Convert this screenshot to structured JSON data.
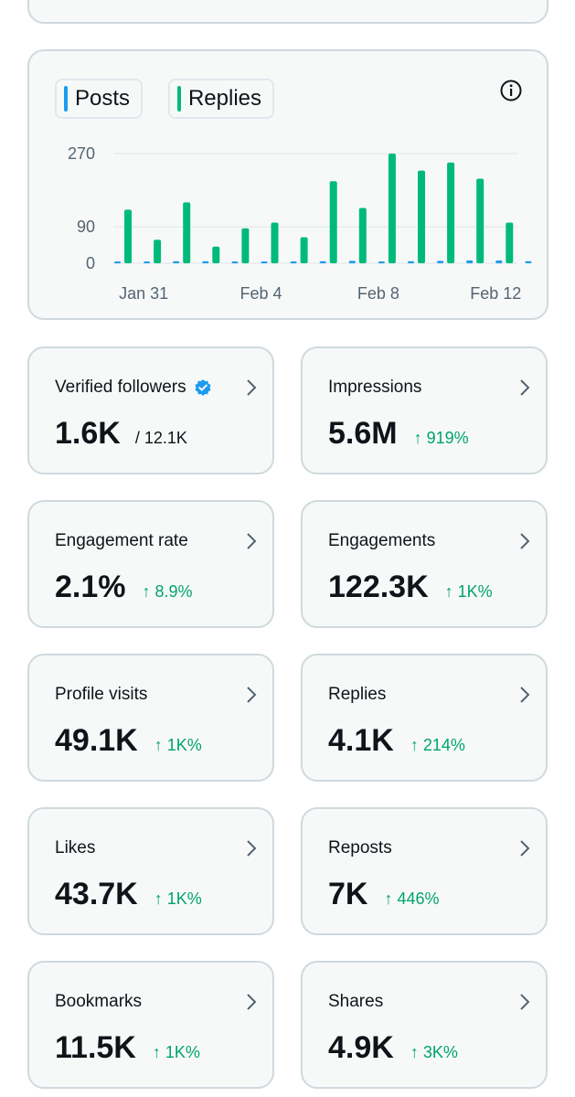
{
  "colors": {
    "posts": "#1d9bf0",
    "replies": "#00ba7c",
    "up": "#00a36c",
    "grid": "#e7ecf0"
  },
  "legend": {
    "posts_label": "Posts",
    "replies_label": "Replies"
  },
  "chart_data": {
    "type": "bar",
    "title": "",
    "xlabel": "",
    "ylabel": "",
    "ylim": [
      0,
      270
    ],
    "yticks": [
      "270",
      "90",
      "0"
    ],
    "ytick_values": [
      270,
      90,
      0
    ],
    "xticks": [
      "Jan 31",
      "Feb 4",
      "Feb 8",
      "Feb 12"
    ],
    "categories": [
      "Jan 30",
      "Jan 31",
      "Feb 1",
      "Feb 2",
      "Feb 3",
      "Feb 4",
      "Feb 5",
      "Feb 6",
      "Feb 7",
      "Feb 8",
      "Feb 9",
      "Feb 10",
      "Feb 11",
      "Feb 12",
      "Feb 13"
    ],
    "series": [
      {
        "name": "Posts",
        "values": [
          4,
          4,
          5,
          5,
          4,
          4,
          4,
          5,
          6,
          4,
          5,
          6,
          7,
          7,
          5
        ]
      },
      {
        "name": "Replies",
        "values": [
          132,
          58,
          150,
          41,
          86,
          100,
          64,
          202,
          136,
          270,
          228,
          248,
          208,
          100,
          0
        ]
      }
    ],
    "grid": true,
    "legend": "top-left"
  },
  "stats": [
    {
      "label": "Verified followers",
      "value": "1.6K",
      "sub": "/ 12.1K",
      "change": ""
    },
    {
      "label": "Impressions",
      "value": "5.6M",
      "sub": "",
      "change": "↑ 919%"
    },
    {
      "label": "Engagement rate",
      "value": "2.1%",
      "sub": "",
      "change": "↑ 8.9%"
    },
    {
      "label": "Engagements",
      "value": "122.3K",
      "sub": "",
      "change": "↑ 1K%"
    },
    {
      "label": "Profile visits",
      "value": "49.1K",
      "sub": "",
      "change": "↑ 1K%"
    },
    {
      "label": "Replies",
      "value": "4.1K",
      "sub": "",
      "change": "↑ 214%"
    },
    {
      "label": "Likes",
      "value": "43.7K",
      "sub": "",
      "change": "↑ 1K%"
    },
    {
      "label": "Reposts",
      "value": "7K",
      "sub": "",
      "change": "↑ 446%"
    },
    {
      "label": "Bookmarks",
      "value": "11.5K",
      "sub": "",
      "change": "↑ 1K%"
    },
    {
      "label": "Shares",
      "value": "4.9K",
      "sub": "",
      "change": "↑ 3K%"
    }
  ]
}
